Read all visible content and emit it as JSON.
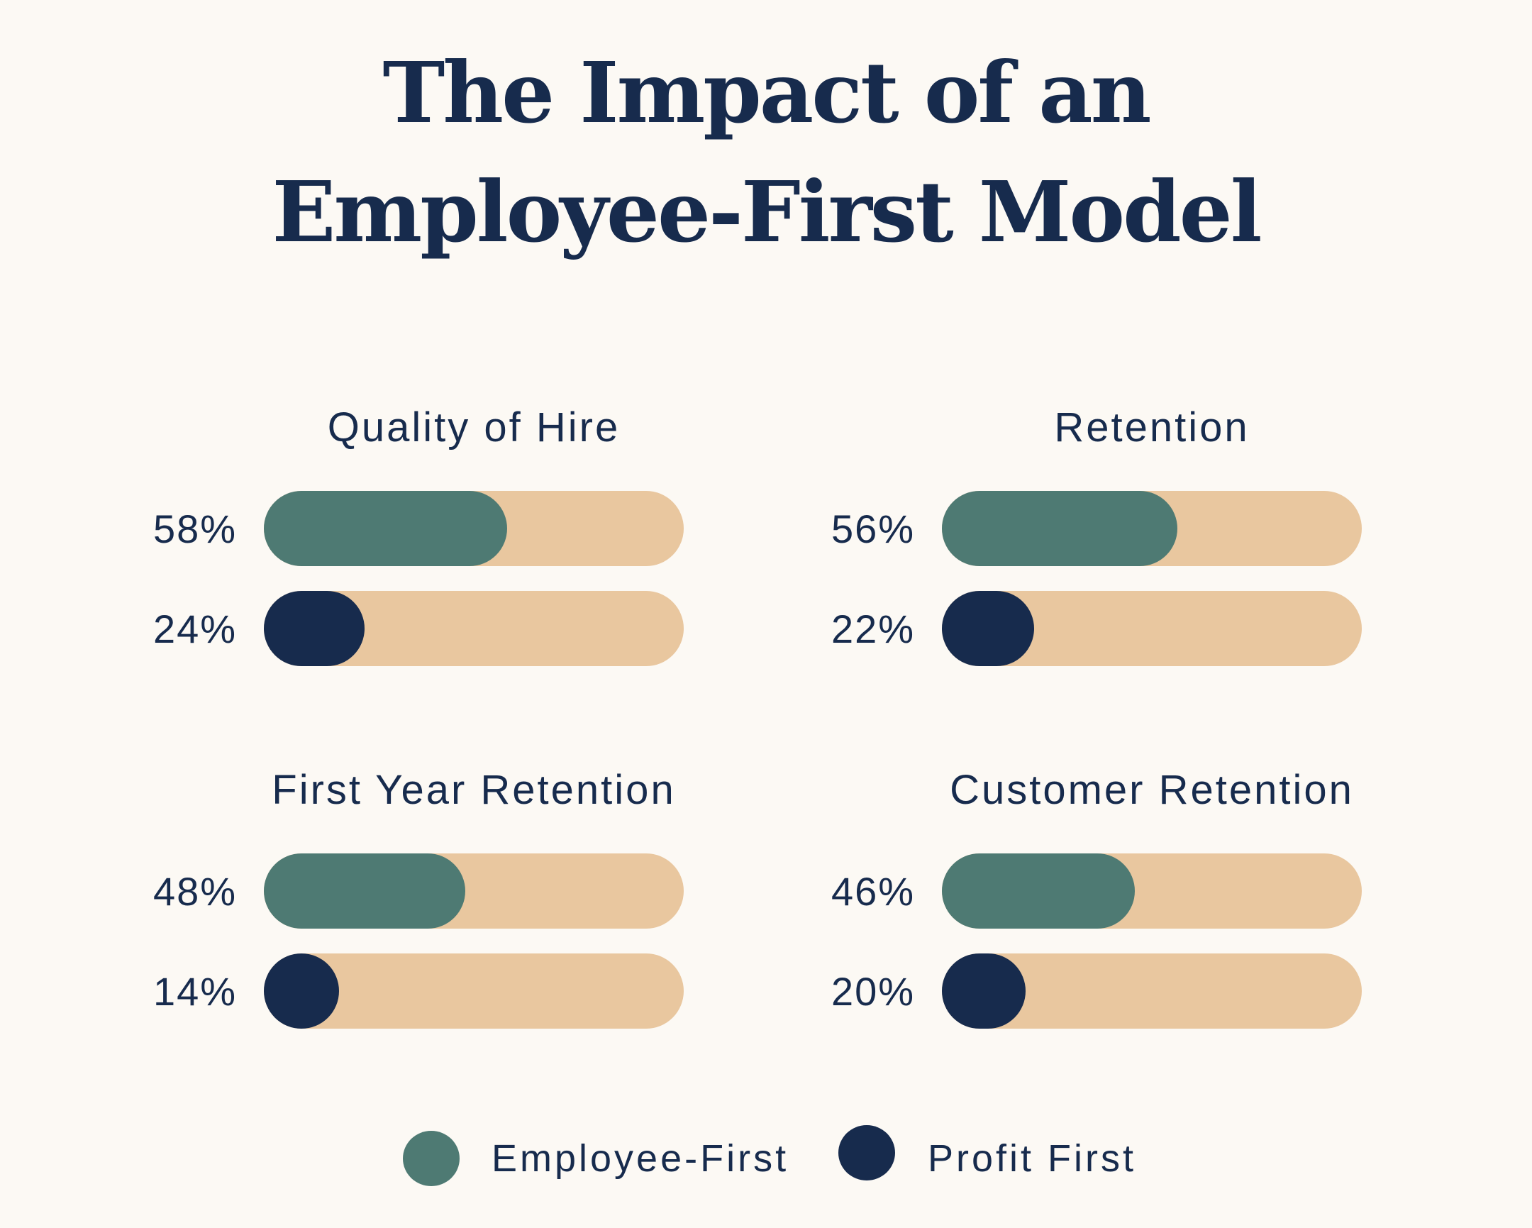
{
  "title": {
    "line1": "The Impact of an",
    "line2": "Employee-First Model"
  },
  "colors": {
    "background": "#fcf9f4",
    "track": "#e9c79f",
    "employee_first": "#4e7a73",
    "profit_first": "#172b4d",
    "text": "#172b4d"
  },
  "chart_data": {
    "type": "bar",
    "orientation": "horizontal",
    "xlim": [
      0,
      100
    ],
    "unit": "%",
    "series": [
      {
        "name": "Employee-First",
        "color": "#4e7a73"
      },
      {
        "name": "Profit First",
        "color": "#172b4d"
      }
    ],
    "panels": [
      {
        "title": "Quality of Hire",
        "values": [
          58,
          24
        ],
        "labels": [
          "58%",
          "24%"
        ]
      },
      {
        "title": "Retention",
        "values": [
          56,
          22
        ],
        "labels": [
          "56%",
          "22%"
        ]
      },
      {
        "title": "First Year Retention",
        "values": [
          48,
          14
        ],
        "labels": [
          "48%",
          "14%"
        ]
      },
      {
        "title": "Customer Retention",
        "values": [
          46,
          20
        ],
        "labels": [
          "46%",
          "20%"
        ]
      }
    ]
  },
  "legend": {
    "placement": "bottom-center",
    "items": [
      {
        "label": "Employee-First",
        "color": "#4e7a73",
        "icon": "circle-swatch"
      },
      {
        "label": "Profit First",
        "color": "#172b4d",
        "icon": "circle-swatch"
      }
    ]
  }
}
